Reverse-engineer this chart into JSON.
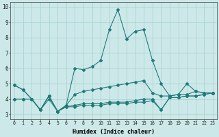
{
  "x": [
    0,
    1,
    2,
    3,
    4,
    5,
    6,
    7,
    8,
    9,
    10,
    11,
    12,
    13,
    14,
    15,
    16,
    17,
    18,
    19,
    20,
    21,
    22,
    23
  ],
  "line1": [
    4.9,
    4.6,
    4.0,
    3.3,
    4.2,
    3.2,
    3.6,
    6.0,
    5.9,
    6.1,
    6.5,
    8.5,
    9.8,
    7.9,
    8.4,
    8.5,
    6.5,
    5.0,
    4.2,
    4.3,
    5.0,
    4.5,
    4.4,
    4.4
  ],
  "line2": [
    4.9,
    4.6,
    4.0,
    3.3,
    4.2,
    3.2,
    3.6,
    4.3,
    4.5,
    4.6,
    4.7,
    4.8,
    4.9,
    5.0,
    5.1,
    5.2,
    4.4,
    4.2,
    4.2,
    4.3,
    4.3,
    4.5,
    4.4,
    4.4
  ],
  "line3": [
    4.0,
    4.0,
    4.0,
    3.3,
    4.2,
    3.2,
    3.5,
    3.6,
    3.7,
    3.7,
    3.7,
    3.8,
    3.8,
    3.8,
    3.9,
    4.0,
    4.0,
    3.3,
    4.1,
    4.1,
    4.2,
    4.2,
    4.3,
    4.4
  ],
  "line4": [
    4.0,
    4.0,
    4.0,
    3.3,
    4.0,
    3.2,
    3.5,
    3.5,
    3.6,
    3.6,
    3.6,
    3.7,
    3.7,
    3.7,
    3.8,
    3.8,
    3.9,
    3.3,
    4.1,
    4.1,
    4.2,
    4.2,
    4.3,
    4.4
  ],
  "line_color": "#217a7a",
  "bg_color": "#cce8e8",
  "grid_color": "#aad4d4",
  "xlabel": "Humidex (Indice chaleur)",
  "ylim": [
    2.7,
    10.3
  ],
  "xlim": [
    -0.5,
    23.5
  ],
  "yticks": [
    3,
    4,
    5,
    6,
    7,
    8,
    9,
    10
  ],
  "xticks": [
    0,
    1,
    2,
    3,
    4,
    5,
    6,
    7,
    8,
    9,
    10,
    11,
    12,
    13,
    14,
    15,
    16,
    17,
    18,
    19,
    20,
    21,
    22,
    23
  ],
  "figw": 3.2,
  "figh": 2.0,
  "dpi": 100
}
